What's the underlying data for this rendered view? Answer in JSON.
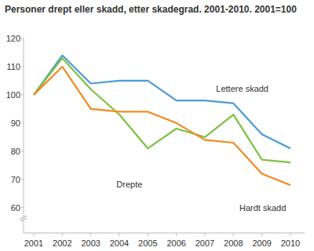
{
  "chart_data": {
    "type": "line",
    "title": "Personer drept eller skadd, etter skadegrad. 2001-2010. 2001=100",
    "categories": [
      "2001",
      "2002",
      "2003",
      "2004",
      "2005",
      "2006",
      "2007",
      "2008",
      "2009",
      "2010"
    ],
    "series": [
      {
        "name": "Lettere skadd",
        "color": "#4b9bd5",
        "values": [
          100,
          114,
          104,
          105,
          105,
          98,
          98,
          97,
          86,
          81
        ]
      },
      {
        "name": "Drepte",
        "color": "#7cc242",
        "values": [
          100,
          113,
          102,
          93,
          81,
          88,
          85,
          93,
          77,
          76
        ]
      },
      {
        "name": "Hardt skadd",
        "color": "#f28a1e",
        "values": [
          100,
          110,
          95,
          94,
          94,
          90,
          84,
          83,
          72,
          68
        ]
      }
    ],
    "ylim": [
      51,
      120
    ],
    "yticks": [
      60,
      70,
      80,
      90,
      100,
      110,
      120
    ],
    "grid": false
  }
}
